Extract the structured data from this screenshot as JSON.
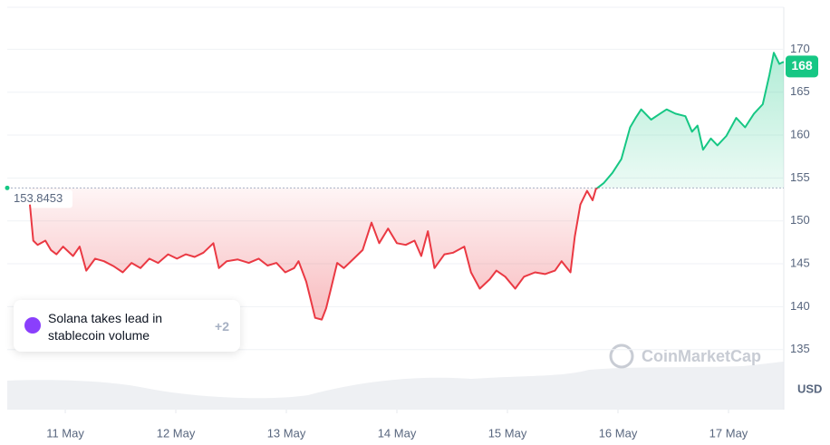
{
  "chart_data": {
    "type": "line",
    "x": [
      10.68,
      10.71,
      10.75,
      10.82,
      10.87,
      10.92,
      10.98,
      11.07,
      11.13,
      11.19,
      11.27,
      11.35,
      11.44,
      11.52,
      11.6,
      11.68,
      11.76,
      11.84,
      11.93,
      12.01,
      12.09,
      12.17,
      12.25,
      12.34,
      12.39,
      12.46,
      12.56,
      12.66,
      12.75,
      12.83,
      12.91,
      12.99,
      13.07,
      13.11,
      13.18,
      13.22,
      13.26,
      13.32,
      13.36,
      13.4,
      13.46,
      13.52,
      13.61,
      13.69,
      13.77,
      13.84,
      13.92,
      14.0,
      14.08,
      14.16,
      14.22,
      14.28,
      14.34,
      14.43,
      14.51,
      14.61,
      14.67,
      14.75,
      14.84,
      14.9,
      14.98,
      15.07,
      15.15,
      15.25,
      15.34,
      15.43,
      15.49,
      15.57,
      15.61,
      15.66,
      15.72,
      15.77,
      15.8,
      15.87,
      15.95,
      16.03,
      16.11,
      16.16,
      16.21,
      16.3,
      16.38,
      16.44,
      16.52,
      16.61,
      16.67,
      16.72,
      16.77,
      16.84,
      16.9,
      16.98,
      17.07,
      17.15,
      17.23,
      17.31,
      17.37,
      17.41,
      17.46,
      17.49,
      17.5
    ],
    "values": [
      151.9,
      147.7,
      147.2,
      147.7,
      146.6,
      146.1,
      147.0,
      145.9,
      147.0,
      144.2,
      145.6,
      145.3,
      144.7,
      144.0,
      145.1,
      144.5,
      145.6,
      145.1,
      146.1,
      145.6,
      146.1,
      145.8,
      146.3,
      147.4,
      144.5,
      145.3,
      145.5,
      145.1,
      145.6,
      144.8,
      145.1,
      144.0,
      144.5,
      145.3,
      142.9,
      140.8,
      138.7,
      138.5,
      139.8,
      141.9,
      145.1,
      144.5,
      145.6,
      146.6,
      149.8,
      147.4,
      149.1,
      147.4,
      147.2,
      147.7,
      145.9,
      148.8,
      144.5,
      146.1,
      146.3,
      147.0,
      144.0,
      142.1,
      143.2,
      144.2,
      143.5,
      142.1,
      143.5,
      144.0,
      143.8,
      144.2,
      145.3,
      144.0,
      148.2,
      151.9,
      153.5,
      152.4,
      153.7,
      154.4,
      155.6,
      157.2,
      160.9,
      162.0,
      163.0,
      161.8,
      162.5,
      163.0,
      162.5,
      162.2,
      160.4,
      161.1,
      158.3,
      159.6,
      158.8,
      159.9,
      162.0,
      160.9,
      162.5,
      163.6,
      167.0,
      169.6,
      168.3,
      168.5,
      168.5
    ],
    "baseline": 153.8453,
    "last_price": 168,
    "up_color": "#16c784",
    "down_color": "#ea3943",
    "xlim": [
      10.475,
      17.5
    ],
    "xticks": [
      {
        "value": 11,
        "label": "11 May"
      },
      {
        "value": 12,
        "label": "12 May"
      },
      {
        "value": 13,
        "label": "13 May"
      },
      {
        "value": 14,
        "label": "14 May"
      },
      {
        "value": 15,
        "label": "15 May"
      },
      {
        "value": 16,
        "label": "16 May"
      },
      {
        "value": 17,
        "label": "17 May"
      }
    ],
    "ylim": [
      128,
      174.9
    ],
    "yticks": [
      135,
      140,
      145,
      150,
      155,
      160,
      165,
      170
    ],
    "y_unit": "USD",
    "grid": true,
    "annotation": {
      "text_line1": "Solana takes lead in",
      "text_line2": "stablecoin volume",
      "count": "+2"
    },
    "watermark": "CoinMarketCap"
  }
}
